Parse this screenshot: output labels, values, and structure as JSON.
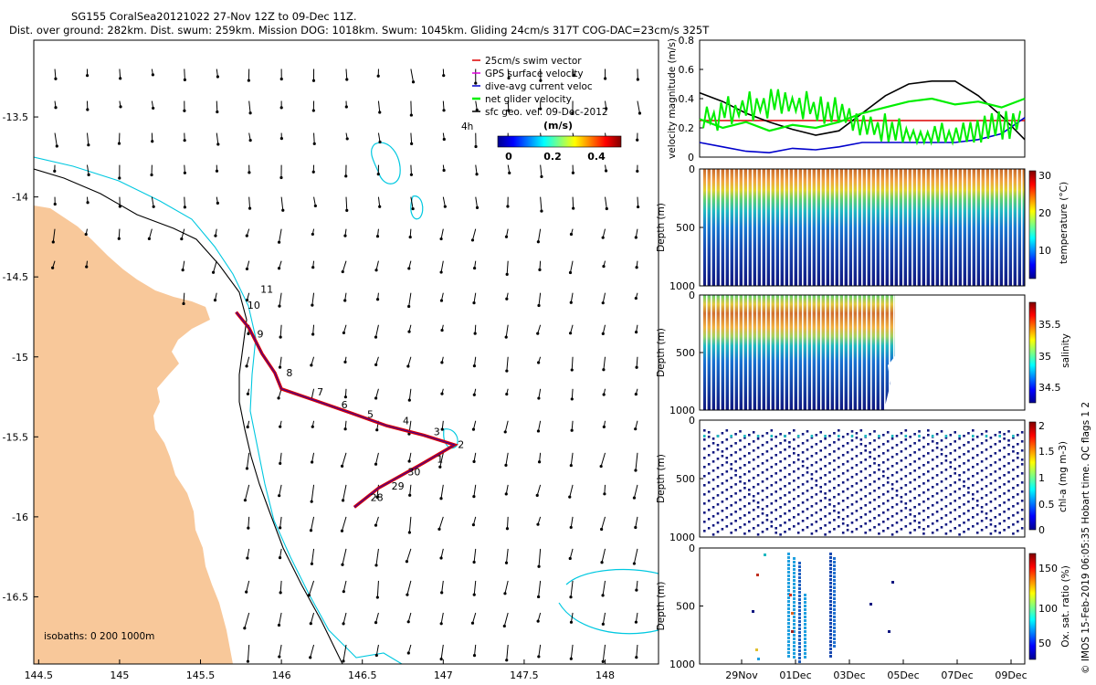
{
  "header": {
    "line1": "SG155 CoralSea20121022 27-Nov 12Z to 09-Dec 11Z.",
    "line2": "Dist. over ground: 282km. Dist. swum: 259km. Mission DOG: 1018km. Swum: 1045km. Gliding 24cm/s 317T COG-DAC=23cm/s 325T"
  },
  "colors": {
    "land": "#f8c89a",
    "isobath200": "#000000",
    "isobath0": "#00c8e0",
    "swim": "#dd0000",
    "gps": "#dd00dd",
    "dac": "#0000cc",
    "net": "#00ee00"
  },
  "chart_data": [
    {
      "type": "map",
      "x_ticks": [
        "144.5",
        "145",
        "145.5",
        "146",
        "146.5",
        "147",
        "147.5",
        "148"
      ],
      "y_ticks": [
        "-13.5",
        "-14",
        "-14.5",
        "-15",
        "-15.5",
        "-16",
        "-16.5"
      ],
      "xlim": [
        144.47,
        148.33
      ],
      "ylim": [
        -16.92,
        -13.02
      ],
      "legend": {
        "position": "top-right",
        "items": [
          "25cm/s swim vector",
          "GPS surface velocity",
          "dive-avg current veloc",
          "net glider velocity",
          "sfc geo. vel. 09-Dec-2012"
        ]
      },
      "colorbar": {
        "title": "(m/s)",
        "ticks": [
          "0",
          "0.2",
          "0.4"
        ],
        "range": [
          0,
          0.5
        ]
      },
      "annotation_4h": "4h",
      "isobath_note": "isobaths: 0   200  1000m",
      "track": [
        [
          145.72,
          -14.72
        ],
        [
          145.8,
          -14.82
        ],
        [
          145.88,
          -14.98
        ],
        [
          145.96,
          -15.1
        ],
        [
          146.0,
          -15.2
        ],
        [
          146.2,
          -15.27
        ],
        [
          146.4,
          -15.34
        ],
        [
          146.65,
          -15.43
        ],
        [
          146.88,
          -15.49
        ],
        [
          147.07,
          -15.55
        ],
        [
          146.85,
          -15.68
        ],
        [
          146.6,
          -15.82
        ],
        [
          146.45,
          -15.94
        ]
      ],
      "day_labels": [
        {
          "label": "11",
          "lon": 145.87,
          "lat": -14.6
        },
        {
          "label": "10",
          "lon": 145.79,
          "lat": -14.7
        },
        {
          "label": "9",
          "lon": 145.85,
          "lat": -14.88
        },
        {
          "label": "8",
          "lon": 146.03,
          "lat": -15.12
        },
        {
          "label": "7",
          "lon": 146.22,
          "lat": -15.24
        },
        {
          "label": "6",
          "lon": 146.37,
          "lat": -15.32
        },
        {
          "label": "5",
          "lon": 146.53,
          "lat": -15.38
        },
        {
          "label": "4",
          "lon": 146.75,
          "lat": -15.42
        },
        {
          "label": "3",
          "lon": 146.94,
          "lat": -15.49
        },
        {
          "label": "2",
          "lon": 147.09,
          "lat": -15.57
        },
        {
          "label": "1",
          "lon": 146.96,
          "lat": -15.66
        },
        {
          "label": "30",
          "lon": 146.78,
          "lat": -15.74
        },
        {
          "label": "29",
          "lon": 146.68,
          "lat": -15.83
        },
        {
          "label": "28",
          "lon": 146.55,
          "lat": -15.9
        }
      ]
    },
    {
      "type": "line",
      "ylabel": "velocity magnitude (m/s)",
      "y_ticks": [
        "0",
        "0.2",
        "0.4",
        "0.6",
        "0.8"
      ],
      "ylim": [
        0,
        0.8
      ],
      "series": [
        {
          "values_note": "swim",
          "values": [
            0.25,
            0.25,
            0.25,
            0.25,
            0.25,
            0.25,
            0.25,
            0.25,
            0.25,
            0.25,
            0.25,
            0.25,
            0.25,
            0.25,
            0.25
          ]
        },
        {
          "values_note": "geo",
          "values": [
            0.44,
            0.38,
            0.3,
            0.24,
            0.19,
            0.15,
            0.18,
            0.3,
            0.42,
            0.5,
            0.52,
            0.52,
            0.42,
            0.28,
            0.12
          ]
        },
        {
          "values_note": "dac",
          "values": [
            0.1,
            0.07,
            0.04,
            0.03,
            0.06,
            0.05,
            0.07,
            0.1,
            0.1,
            0.1,
            0.1,
            0.1,
            0.12,
            0.16,
            0.27
          ]
        },
        {
          "values_note": "net",
          "values": [
            0.26,
            0.2,
            0.24,
            0.18,
            0.22,
            0.2,
            0.24,
            0.3,
            0.34,
            0.38,
            0.4,
            0.36,
            0.38,
            0.34,
            0.4
          ]
        }
      ]
    },
    {
      "type": "heatmap",
      "ylabel": "Depth (m)",
      "y_ticks": [
        "0",
        "500",
        "1000"
      ],
      "colorbar_label": "temperature (°C)",
      "colorbar_ticks": [
        "30",
        "20",
        "10"
      ]
    },
    {
      "type": "heatmap",
      "ylabel": "Depth (m)",
      "y_ticks": [
        "0",
        "500",
        "1000"
      ],
      "colorbar_label": "salinity",
      "colorbar_ticks": [
        "35.5",
        "35",
        "34.5"
      ]
    },
    {
      "type": "scatter",
      "ylabel": "Depth (m)",
      "y_ticks": [
        "0",
        "500",
        "1000"
      ],
      "colorbar_label": "chl-a (mg m-3)",
      "colorbar_ticks": [
        "2",
        "1.5",
        "1",
        "0.5",
        "0"
      ]
    },
    {
      "type": "scatter",
      "ylabel": "Depth (m)",
      "y_ticks": [
        "0",
        "500",
        "1000"
      ],
      "colorbar_label": "Ox. sat. ratio (%)",
      "colorbar_ticks": [
        "150",
        "100",
        "50"
      ],
      "x_ticks": [
        "29Nov",
        "01Dec",
        "03Dec",
        "05Dec",
        "07Dec",
        "09Dec"
      ]
    }
  ],
  "side_note": "© IMOS 15-Feb-2019 06:05:35 Hobart time. QC flags 1  2"
}
